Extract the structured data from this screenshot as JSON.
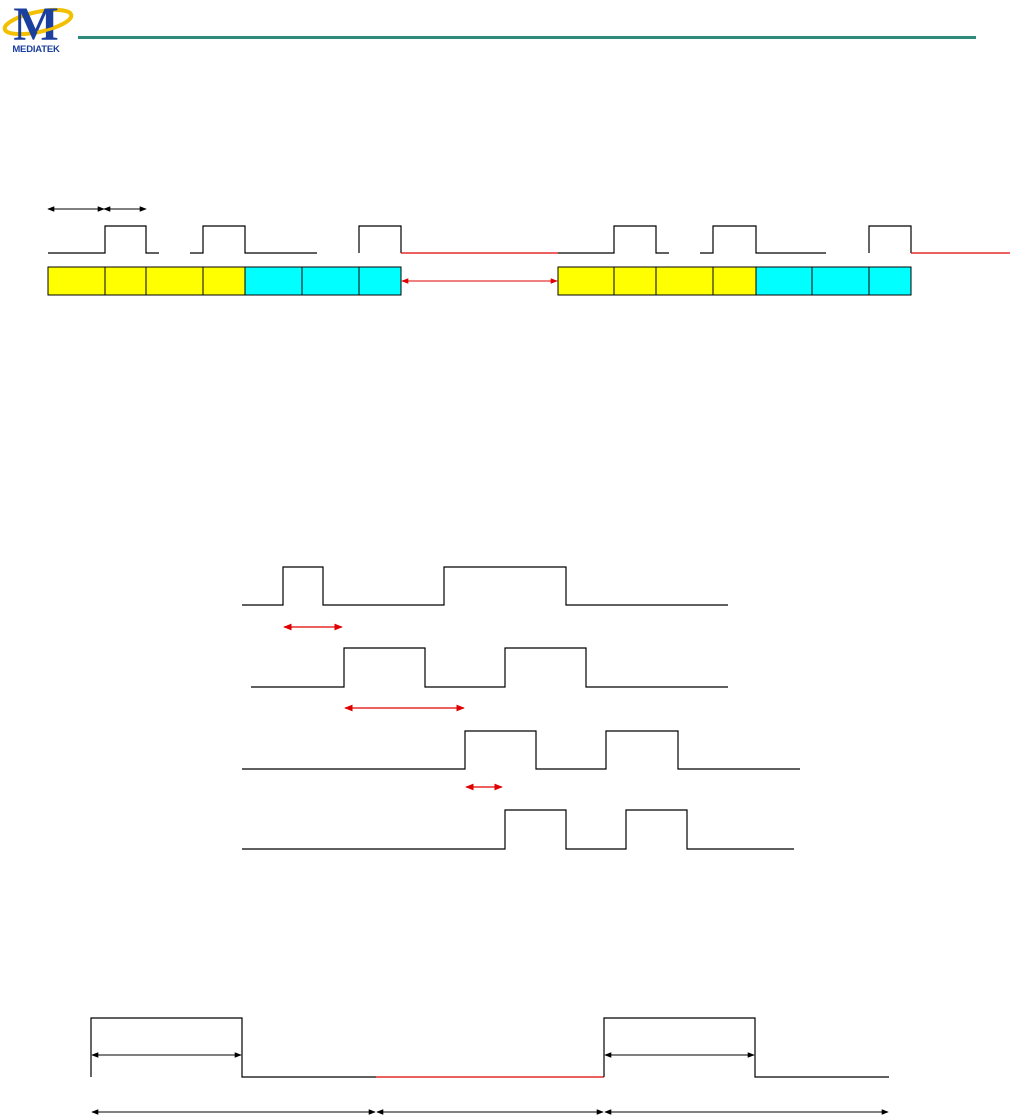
{
  "header": {
    "logo_text": "MEDIATEK",
    "logo_icon": "mediatek-logo-icon",
    "rule_color": "#2f8a7e"
  },
  "colors": {
    "signal": "#000000",
    "highlight": "#e00000",
    "cell_yellow": "#ffff00",
    "cell_cyan": "#00ffff"
  },
  "figures": {
    "frame_sequence": {
      "cells_per_frame": [
        "yellow",
        "yellow",
        "yellow",
        "yellow",
        "cyan",
        "cyan",
        "cyan"
      ],
      "frames": 2
    },
    "timing_waveforms": {
      "rows": 4
    },
    "period_diagram": {
      "segments": 3
    }
  }
}
